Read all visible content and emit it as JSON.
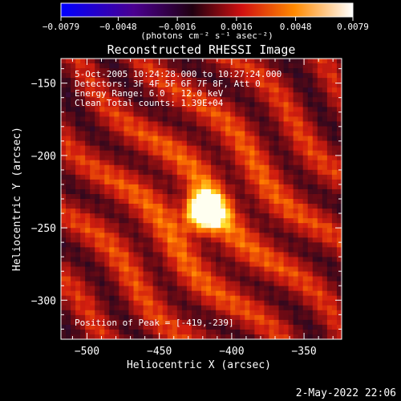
{
  "chart_data": {
    "type": "heatmap",
    "title": "Reconstructed RHESSI Image",
    "xlabel": "Heliocentric X (arcsec)",
    "ylabel": "Heliocentric Y (arcsec)",
    "xlim": [
      -518,
      -324
    ],
    "ylim": [
      -327,
      -133
    ],
    "x_ticks": [
      -500,
      -450,
      -400,
      -350
    ],
    "y_ticks": [
      -150,
      -200,
      -250,
      -300
    ],
    "x_tick_labels": [
      "−500",
      "−450",
      "−400",
      "−350"
    ],
    "y_tick_labels": [
      "−150",
      "−200",
      "−250",
      "−300"
    ],
    "colorbar": {
      "range": [
        -0.0079,
        0.0079
      ],
      "ticks": [
        -0.0079,
        -0.0048,
        -0.0016,
        0.0016,
        0.0048,
        0.0079
      ],
      "tick_labels": [
        "−0.0079",
        "−0.0048",
        "−0.0016",
        "0.0016",
        "0.0048",
        "0.0079"
      ],
      "unit_label": "(photons cm⁻² s⁻¹ asec⁻²)",
      "colormap": "blue-purple-red-orange-yellow-white"
    },
    "annotations": [
      "5-Oct-2005 10:24:28.000 to 10:27:24.000",
      "Detectors: 3F 4F 5F 6F 7F 8F, Att 0",
      "Energy Range: 6.0 - 12.0 keV",
      "Clean    Total counts: 1.39E+04"
    ],
    "peak_label": "Position of Peak = [-419,-239]",
    "peak": {
      "x": -419,
      "y": -239,
      "value": 0.0079
    }
  },
  "footer": {
    "timestamp": "2-May-2022 22:06"
  }
}
